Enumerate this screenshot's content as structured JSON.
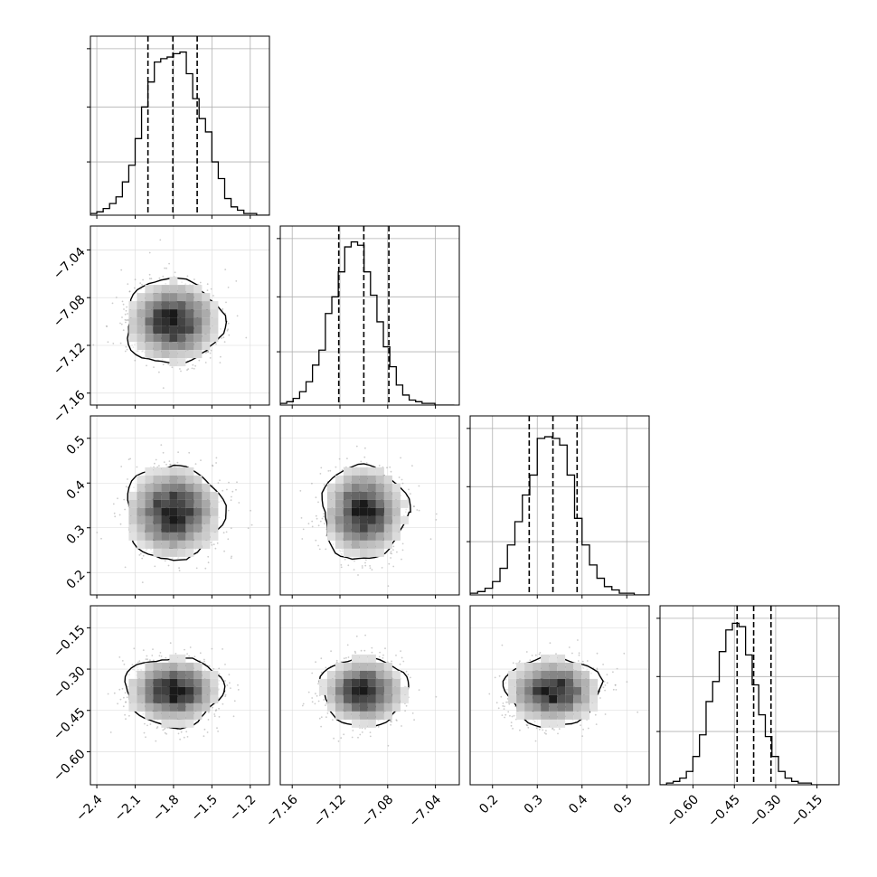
{
  "chart_data": {
    "type": "corner",
    "grid": true,
    "parameters": [
      {
        "range": [
          -2.45,
          -1.05
        ],
        "ticks": [
          "-2.4",
          "-2.1",
          "-1.8",
          "-1.5",
          "-1.2"
        ],
        "tick_values": [
          -2.4,
          -2.1,
          -1.8,
          -1.5,
          -1.2
        ],
        "quantiles": [
          -2.0,
          -1.805,
          -1.615
        ],
        "hist": {
          "edges": [
            -2.45,
            -2.4,
            -2.35,
            -2.3,
            -2.25,
            -2.2,
            -2.15,
            -2.1,
            -2.05,
            -2.0,
            -1.95,
            -1.9,
            -1.85,
            -1.8,
            -1.75,
            -1.7,
            -1.65,
            -1.6,
            -1.55,
            -1.5,
            -1.45,
            -1.4,
            -1.35,
            -1.3,
            -1.25,
            -1.2,
            -1.15,
            -1.1,
            -1.05
          ],
          "counts": [
            0.01,
            0.02,
            0.04,
            0.07,
            0.11,
            0.2,
            0.3,
            0.46,
            0.65,
            0.8,
            0.92,
            0.94,
            0.95,
            0.97,
            0.98,
            0.85,
            0.7,
            0.58,
            0.5,
            0.32,
            0.22,
            0.1,
            0.05,
            0.03,
            0.01,
            0.01,
            0.0,
            0.0
          ],
          "ymax": 1.0,
          "yticks": [
            0.32,
            0.65
          ]
        },
        "center": -1.8,
        "sd": 0.18
      },
      {
        "range": [
          -7.17,
          -7.02
        ],
        "ticks": [
          "-7.16",
          "-7.12",
          "-7.08",
          "-7.04"
        ],
        "tick_values": [
          -7.16,
          -7.12,
          -7.08,
          -7.04
        ],
        "quantiles": [
          -7.121,
          -7.1,
          -7.079
        ],
        "hist": {
          "edges": [
            -7.17,
            -7.1646,
            -7.1592,
            -7.1538,
            -7.1484,
            -7.143,
            -7.1376,
            -7.1322,
            -7.1268,
            -7.1214,
            -7.116,
            -7.1106,
            -7.1052,
            -7.0998,
            -7.0944,
            -7.089,
            -7.0836,
            -7.0782,
            -7.0728,
            -7.0674,
            -7.062,
            -7.0566,
            -7.0512,
            -7.0458,
            -7.0404,
            -7.035,
            -7.0296,
            -7.0242
          ],
          "counts": [
            0.01,
            0.02,
            0.04,
            0.08,
            0.14,
            0.24,
            0.33,
            0.55,
            0.65,
            0.8,
            0.95,
            0.98,
            0.96,
            0.8,
            0.66,
            0.5,
            0.35,
            0.23,
            0.12,
            0.06,
            0.03,
            0.02,
            0.01,
            0.01,
            0.0,
            0.0,
            0.0
          ],
          "ymax": 1.0,
          "yticks": [
            0.32,
            0.65
          ]
        },
        "center": -7.1,
        "sd": 0.017
      },
      {
        "range": [
          0.15,
          0.55
        ],
        "ticks": [
          "0.2",
          "0.3",
          "0.4",
          "0.5"
        ],
        "tick_values": [
          0.2,
          0.3,
          0.4,
          0.5
        ],
        "quantiles": [
          0.282,
          0.335,
          0.389
        ],
        "hist": {
          "edges": [
            0.15,
            0.1667,
            0.1833,
            0.2,
            0.2167,
            0.2333,
            0.25,
            0.2667,
            0.2833,
            0.3,
            0.3167,
            0.3333,
            0.35,
            0.3667,
            0.3833,
            0.4,
            0.4167,
            0.4333,
            0.45,
            0.4667,
            0.4833,
            0.5,
            0.5167,
            0.5333,
            0.55
          ],
          "counts": [
            0.01,
            0.02,
            0.04,
            0.08,
            0.16,
            0.3,
            0.44,
            0.6,
            0.72,
            0.94,
            0.95,
            0.94,
            0.9,
            0.72,
            0.46,
            0.3,
            0.18,
            0.1,
            0.05,
            0.03,
            0.01,
            0.01,
            0.0,
            0.0
          ],
          "ymax": 1.0,
          "yticks": [
            0.32,
            0.65
          ]
        },
        "center": 0.335,
        "sd": 0.05
      },
      {
        "range": [
          -0.72,
          -0.07
        ],
        "ticks": [
          "-0.60",
          "-0.45",
          "-0.30",
          "-0.15"
        ],
        "tick_values": [
          -0.6,
          -0.45,
          -0.3,
          -0.15
        ],
        "quantiles": [
          -0.44,
          -0.38,
          -0.317
        ],
        "hist": {
          "edges": [
            -0.72,
            -0.6961,
            -0.6722,
            -0.6483,
            -0.6244,
            -0.6005,
            -0.5766,
            -0.5527,
            -0.5288,
            -0.5049,
            -0.481,
            -0.4571,
            -0.4332,
            -0.4093,
            -0.3854,
            -0.3615,
            -0.3376,
            -0.3137,
            -0.2898,
            -0.2659,
            -0.242,
            -0.2181,
            -0.1942,
            -0.1703,
            -0.1464,
            -0.1225,
            -0.0986,
            -0.0747
          ],
          "counts": [
            0.0,
            0.01,
            0.02,
            0.04,
            0.08,
            0.17,
            0.3,
            0.5,
            0.62,
            0.8,
            0.93,
            0.97,
            0.95,
            0.78,
            0.6,
            0.42,
            0.29,
            0.17,
            0.08,
            0.04,
            0.02,
            0.01,
            0.01,
            0.0,
            0.0,
            0.0,
            0.0
          ],
          "ymax": 1.0,
          "yticks": [
            0.32,
            0.65
          ]
        },
        "center": -0.38,
        "sd": 0.06
      }
    ]
  }
}
